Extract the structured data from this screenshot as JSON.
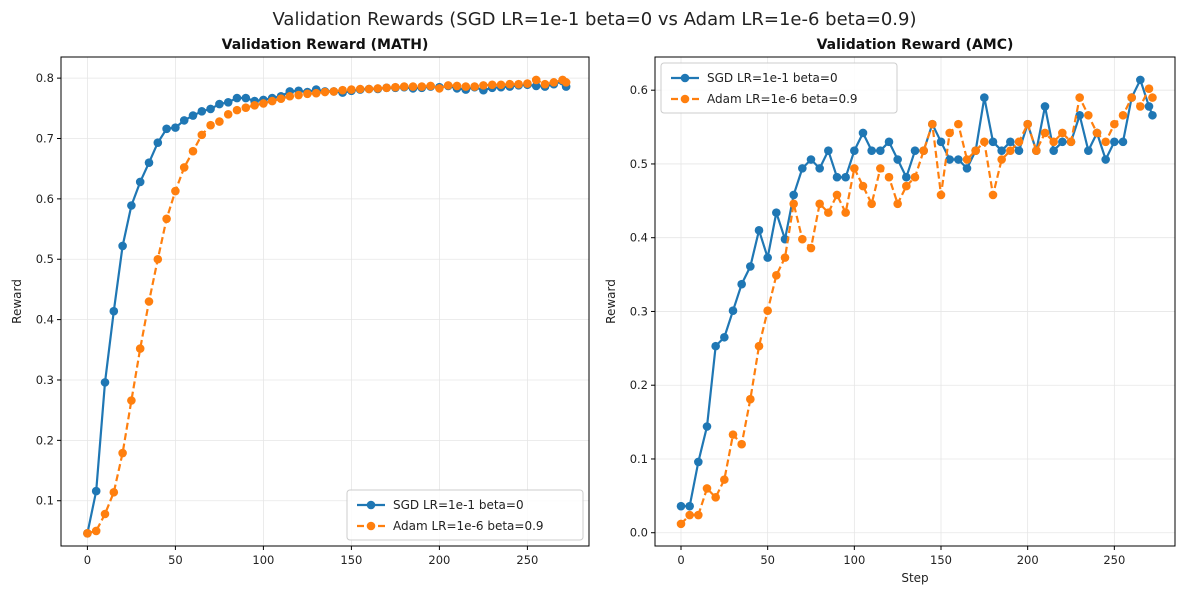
{
  "figure": {
    "title": "Validation Rewards (SGD LR=1e-1 beta=0 vs Adam LR=1e-6 beta=0.9)",
    "colors": {
      "sgd": "#1f77b4",
      "adam": "#ff7f0e",
      "grid": "#e6e6e6"
    }
  },
  "chart_data": [
    {
      "type": "line",
      "title": "Validation Reward (MATH)",
      "xlabel": "",
      "ylabel": "Reward",
      "xlim": [
        -15,
        285
      ],
      "ylim": [
        0.025,
        0.835
      ],
      "xticks": [
        0,
        50,
        100,
        150,
        200,
        250
      ],
      "yticks": [
        0.1,
        0.2,
        0.3,
        0.4,
        0.5,
        0.6,
        0.7,
        0.8
      ],
      "grid": true,
      "legend_position": "bottom-right",
      "series": [
        {
          "name": "SGD LR=1e-1 beta=0",
          "style": "solid",
          "x": [
            0,
            5,
            10,
            15,
            20,
            25,
            30,
            35,
            40,
            45,
            50,
            55,
            60,
            65,
            70,
            75,
            80,
            85,
            90,
            95,
            100,
            105,
            110,
            115,
            120,
            125,
            130,
            135,
            140,
            145,
            150,
            155,
            160,
            165,
            170,
            175,
            180,
            185,
            190,
            195,
            200,
            205,
            210,
            215,
            220,
            225,
            230,
            235,
            240,
            245,
            250,
            255,
            260,
            265,
            270,
            272
          ],
          "y": [
            0.046,
            0.116,
            0.296,
            0.414,
            0.522,
            0.589,
            0.628,
            0.66,
            0.693,
            0.716,
            0.718,
            0.73,
            0.738,
            0.745,
            0.749,
            0.757,
            0.76,
            0.767,
            0.767,
            0.762,
            0.764,
            0.767,
            0.77,
            0.778,
            0.779,
            0.777,
            0.781,
            0.778,
            0.778,
            0.776,
            0.779,
            0.781,
            0.782,
            0.782,
            0.784,
            0.784,
            0.785,
            0.783,
            0.784,
            0.786,
            0.785,
            0.787,
            0.783,
            0.781,
            0.785,
            0.78,
            0.784,
            0.785,
            0.786,
            0.788,
            0.789,
            0.787,
            0.786,
            0.79,
            0.795,
            0.786
          ]
        },
        {
          "name": "Adam LR=1e-6 beta=0.9",
          "style": "dashed",
          "x": [
            0,
            5,
            10,
            15,
            20,
            25,
            30,
            35,
            40,
            45,
            50,
            55,
            60,
            65,
            70,
            75,
            80,
            85,
            90,
            95,
            100,
            105,
            110,
            115,
            120,
            125,
            130,
            135,
            140,
            145,
            150,
            155,
            160,
            165,
            170,
            175,
            180,
            185,
            190,
            195,
            200,
            205,
            210,
            215,
            220,
            225,
            230,
            235,
            240,
            245,
            250,
            255,
            260,
            265,
            270,
            272
          ],
          "y": [
            0.046,
            0.05,
            0.078,
            0.114,
            0.179,
            0.266,
            0.352,
            0.43,
            0.5,
            0.567,
            0.613,
            0.652,
            0.679,
            0.706,
            0.722,
            0.728,
            0.74,
            0.747,
            0.751,
            0.755,
            0.758,
            0.762,
            0.766,
            0.77,
            0.772,
            0.774,
            0.775,
            0.777,
            0.778,
            0.78,
            0.781,
            0.782,
            0.782,
            0.783,
            0.784,
            0.785,
            0.786,
            0.786,
            0.786,
            0.787,
            0.783,
            0.788,
            0.787,
            0.786,
            0.786,
            0.788,
            0.789,
            0.789,
            0.79,
            0.79,
            0.791,
            0.797,
            0.79,
            0.793,
            0.797,
            0.793
          ]
        }
      ]
    },
    {
      "type": "line",
      "title": "Validation Reward (AMC)",
      "xlabel": "Step",
      "ylabel": "Reward",
      "xlim": [
        -15,
        285
      ],
      "ylim": [
        -0.018,
        0.645
      ],
      "xticks": [
        0,
        50,
        100,
        150,
        200,
        250
      ],
      "yticks": [
        0.0,
        0.1,
        0.2,
        0.3,
        0.4,
        0.5,
        0.6
      ],
      "grid": true,
      "legend_position": "top-left",
      "series": [
        {
          "name": "SGD LR=1e-1 beta=0",
          "style": "solid",
          "x": [
            0,
            5,
            10,
            15,
            20,
            25,
            30,
            35,
            40,
            45,
            50,
            55,
            60,
            65,
            70,
            75,
            80,
            85,
            90,
            95,
            100,
            105,
            110,
            115,
            120,
            125,
            130,
            135,
            140,
            145,
            150,
            155,
            160,
            165,
            170,
            175,
            180,
            185,
            190,
            195,
            200,
            205,
            210,
            215,
            220,
            225,
            230,
            235,
            240,
            245,
            250,
            255,
            260,
            265,
            270,
            272
          ],
          "y": [
            0.036,
            0.036,
            0.096,
            0.144,
            0.253,
            0.265,
            0.301,
            0.337,
            0.361,
            0.41,
            0.373,
            0.434,
            0.398,
            0.458,
            0.494,
            0.506,
            0.494,
            0.518,
            0.482,
            0.482,
            0.518,
            0.542,
            0.518,
            0.518,
            0.53,
            0.506,
            0.482,
            0.518,
            0.518,
            0.554,
            0.53,
            0.506,
            0.506,
            0.494,
            0.518,
            0.59,
            0.53,
            0.518,
            0.53,
            0.518,
            0.554,
            0.518,
            0.578,
            0.518,
            0.53,
            0.53,
            0.566,
            0.518,
            0.542,
            0.506,
            0.53,
            0.53,
            0.59,
            0.614,
            0.578,
            0.566
          ]
        },
        {
          "name": "Adam LR=1e-6 beta=0.9",
          "style": "dashed",
          "x": [
            0,
            5,
            10,
            15,
            20,
            25,
            30,
            35,
            40,
            45,
            50,
            55,
            60,
            65,
            70,
            75,
            80,
            85,
            90,
            95,
            100,
            105,
            110,
            115,
            120,
            125,
            130,
            135,
            140,
            145,
            150,
            155,
            160,
            165,
            170,
            175,
            180,
            185,
            190,
            195,
            200,
            205,
            210,
            215,
            220,
            225,
            230,
            235,
            240,
            245,
            250,
            255,
            260,
            265,
            270,
            272
          ],
          "y": [
            0.012,
            0.024,
            0.024,
            0.06,
            0.048,
            0.072,
            0.133,
            0.12,
            0.181,
            0.253,
            0.301,
            0.349,
            0.373,
            0.446,
            0.398,
            0.386,
            0.446,
            0.434,
            0.458,
            0.434,
            0.494,
            0.47,
            0.446,
            0.494,
            0.482,
            0.446,
            0.47,
            0.482,
            0.518,
            0.554,
            0.458,
            0.542,
            0.554,
            0.506,
            0.518,
            0.53,
            0.458,
            0.506,
            0.518,
            0.53,
            0.554,
            0.518,
            0.542,
            0.53,
            0.542,
            0.53,
            0.59,
            0.566,
            0.542,
            0.53,
            0.554,
            0.566,
            0.59,
            0.578,
            0.602,
            0.59
          ]
        }
      ]
    }
  ]
}
